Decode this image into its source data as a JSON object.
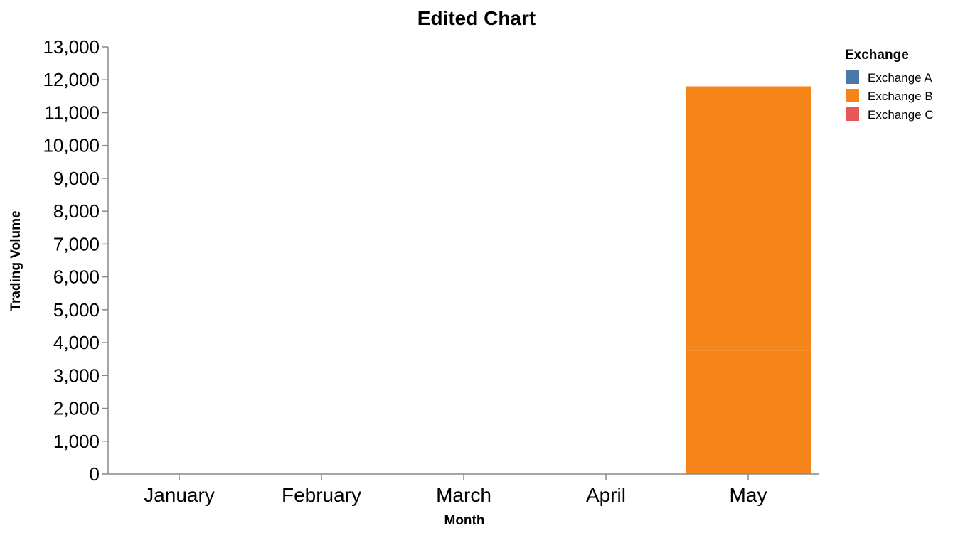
{
  "chart_data": {
    "type": "bar",
    "stacked": true,
    "title": "Edited Chart",
    "xlabel": "Month",
    "ylabel": "Trading Volume",
    "categories": [
      "January",
      "February",
      "March",
      "April",
      "May"
    ],
    "series": [
      {
        "name": "Exchange A",
        "color": "#4c78a8",
        "values": [
          0,
          0,
          0,
          0,
          0
        ]
      },
      {
        "name": "Exchange B",
        "color": "#f58518",
        "values": [
          0,
          0,
          0,
          0,
          3750
        ]
      },
      {
        "name": "Exchange B",
        "color": "#f58518",
        "values": [
          0,
          0,
          0,
          0,
          8050
        ]
      },
      {
        "name": "Exchange C",
        "color": "#e45756",
        "values": [
          0,
          0,
          0,
          0,
          0
        ]
      }
    ],
    "ylim": [
      0,
      13000
    ],
    "yticks": [
      0,
      1000,
      2000,
      3000,
      4000,
      5000,
      6000,
      7000,
      8000,
      9000,
      10000,
      11000,
      12000,
      13000
    ],
    "grid": false,
    "legend": {
      "title": "Exchange",
      "position": "top-right",
      "entries": [
        {
          "label": "Exchange A",
          "color": "#4c78a8"
        },
        {
          "label": "Exchange B",
          "color": "#f58518"
        },
        {
          "label": "Exchange C",
          "color": "#e45756"
        }
      ]
    }
  }
}
